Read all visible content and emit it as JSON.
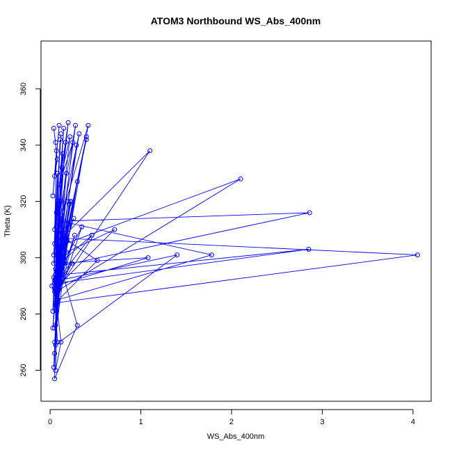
{
  "chart_data": {
    "type": "line",
    "title": "ATOM3 Northbound WS_Abs_400nm",
    "xlabel": "WS_Abs_400nm",
    "ylabel": "Theta (K)",
    "xlim": [
      -0.1,
      4.2
    ],
    "ylim": [
      249,
      377
    ],
    "xticks": [
      0,
      1,
      2,
      3,
      4
    ],
    "yticks": [
      260,
      280,
      300,
      320,
      340,
      360
    ],
    "grid": false,
    "legend": "none",
    "colors": {
      "series": "#0000ff",
      "axes": "#000000",
      "background": "#ffffff"
    },
    "series": [
      {
        "marker": "open-circle",
        "x": [
          0.06,
          0.04,
          0.08,
          0.05,
          0.1,
          0.03,
          0.07,
          0.05,
          0.12,
          0.04,
          0.08,
          0.06,
          0.15,
          0.09,
          0.05,
          0.11,
          0.07,
          0.04,
          0.2,
          0.13,
          0.06,
          0.09,
          0.05,
          0.17,
          0.08,
          0.14,
          0.06,
          0.1,
          0.22,
          0.07,
          0.12,
          0.05,
          0.28,
          0.09,
          0.15,
          0.06,
          0.11,
          0.08,
          0.25,
          0.1,
          0.06,
          0.14,
          0.09,
          0.32,
          0.12,
          0.07,
          0.18,
          0.1,
          0.05,
          0.16,
          0.08,
          0.42,
          0.13,
          0.06,
          0.2,
          0.09,
          0.14,
          0.07,
          0.3,
          0.11,
          0.05,
          0.18,
          0.08,
          1.78,
          0.12,
          0.06,
          0.22,
          0.1,
          2.86,
          0.15,
          0.07,
          0.4,
          0.09,
          0.13,
          0.06,
          1.4,
          0.11,
          0.19,
          0.08,
          0.35,
          0.12,
          0.07,
          4.05,
          0.1,
          0.16,
          0.06,
          0.24,
          0.09,
          2.85,
          0.14,
          0.08,
          0.27,
          0.11,
          0.05,
          0.2,
          0.09,
          1.1,
          0.13,
          0.07,
          0.18,
          0.1,
          0.06,
          0.52,
          0.15,
          0.09,
          0.71,
          0.12,
          0.07,
          2.1,
          0.17,
          0.08,
          0.46,
          0.11,
          1.08,
          0.06,
          0.23,
          0.1,
          0.4,
          0.14,
          0.08,
          0.21,
          0.11,
          0.05,
          0.29,
          0.09,
          0.16,
          0.07,
          0.26,
          0.12,
          0.06,
          0.03,
          0.09,
          0.05,
          0.13,
          0.08,
          0.04,
          0.11,
          0.06,
          0.02,
          0.1,
          0.07,
          0.05,
          0.3,
          0.09,
          0.06,
          0.12,
          0.04,
          0.08,
          0.05,
          0.03,
          0.07
        ],
        "y": [
          341,
          346,
          335,
          329,
          347,
          322,
          338,
          310,
          344,
          301,
          330,
          296,
          346,
          320,
          305,
          342,
          311,
          298,
          348,
          332,
          294,
          319,
          289,
          341,
          309,
          337,
          286,
          326,
          343,
          301,
          320,
          291,
          347,
          313,
          298,
          283,
          317,
          294,
          341,
          326,
          287,
          311,
          298,
          344,
          313,
          289,
          330,
          304,
          292,
          299,
          284,
          347,
          315,
          288,
          320,
          299,
          309,
          281,
          327,
          294,
          270,
          302,
          285,
          301,
          313,
          276,
          320,
          297,
          316,
          313,
          289,
          343,
          295,
          311,
          269,
          301,
          292,
          306,
          285,
          311,
          296,
          284,
          301,
          307,
          298,
          287,
          298,
          291,
          303,
          294,
          285,
          308,
          292,
          275,
          312,
          289,
          338,
          307,
          283,
          306,
          294,
          284,
          299,
          307,
          290,
          310,
          301,
          288,
          328,
          305,
          292,
          308,
          298,
          300,
          290,
          320,
          296,
          342,
          303,
          291,
          319,
          297,
          288,
          340,
          296,
          308,
          293,
          314,
          300,
          290,
          275,
          296,
          266,
          298,
          293,
          261,
          296,
          287,
          290,
          303,
          298,
          257,
          276,
          300,
          260,
          270,
          293,
          270,
          291,
          281,
          316
        ]
      }
    ]
  }
}
